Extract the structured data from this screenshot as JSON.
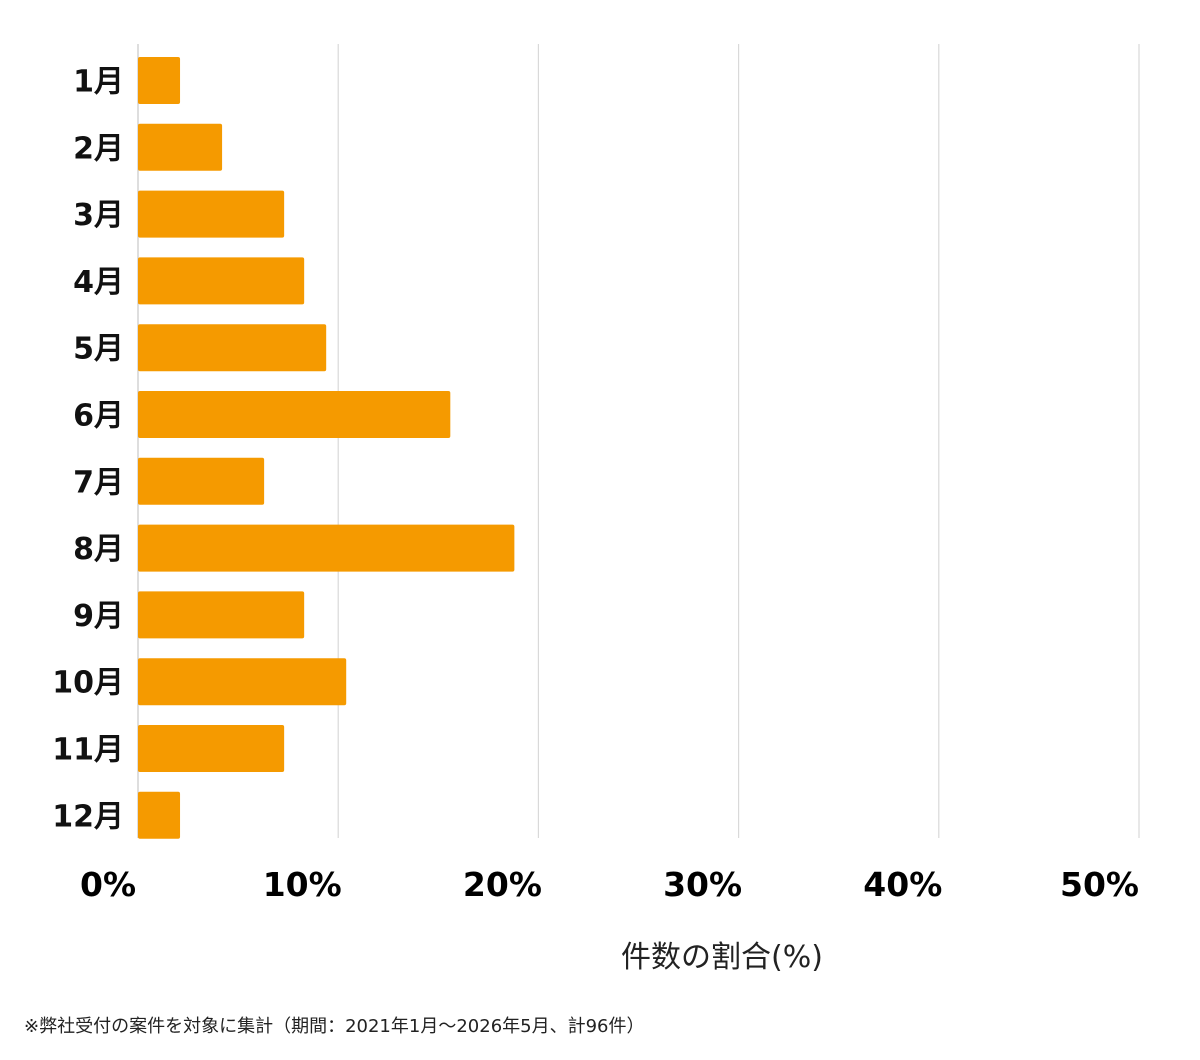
{
  "chart_data": {
    "type": "bar",
    "orientation": "horizontal",
    "categories": [
      "1月",
      "2月",
      "3月",
      "4月",
      "5月",
      "6月",
      "7月",
      "8月",
      "9月",
      "10月",
      "11月",
      "12月"
    ],
    "values": [
      2.1,
      4.2,
      7.3,
      8.3,
      9.4,
      15.6,
      6.3,
      18.8,
      8.3,
      10.4,
      7.3,
      2.1
    ],
    "xlabel": "件数の割合(%)",
    "xlim": [
      0,
      50
    ],
    "x_ticks": [
      0,
      10,
      20,
      30,
      40,
      50
    ],
    "x_tick_labels": [
      "0%",
      "10%",
      "20%",
      "30%",
      "40%",
      "50%"
    ],
    "grid": "vertical",
    "legend": "none"
  },
  "colors": {
    "bar": "#f59a00",
    "grid": "#d9d9d9"
  },
  "footnote": "※弊社受付の案件を対象に集計（期間：2021年1月〜2026年5月、計96件）"
}
